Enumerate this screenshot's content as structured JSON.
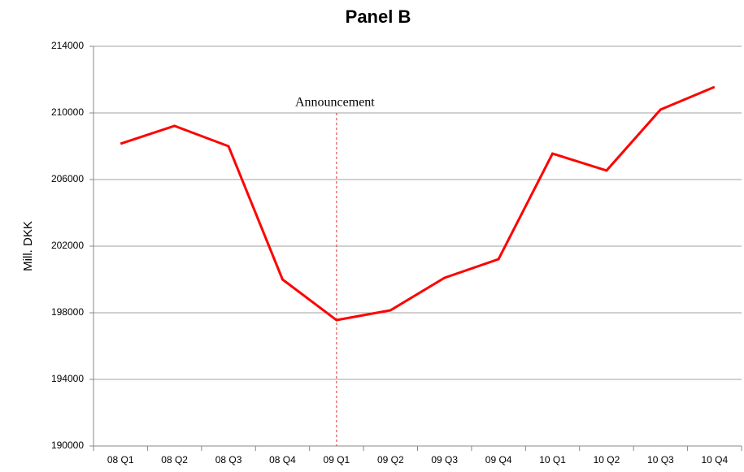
{
  "chart_data": {
    "type": "line",
    "title": "Panel B",
    "y_label": "Mill. DKK",
    "categories": [
      "08 Q1",
      "08 Q2",
      "08 Q3",
      "08 Q4",
      "09 Q1",
      "09 Q2",
      "09 Q3",
      "09 Q4",
      "10 Q1",
      "10 Q2",
      "10 Q3",
      "10 Q4"
    ],
    "series": [
      {
        "name": "Mill. DKK",
        "color": "#ff0000",
        "values": [
          208150,
          209220,
          208000,
          200000,
          197560,
          198150,
          200100,
          201220,
          207560,
          206540,
          210200,
          211560
        ]
      }
    ],
    "ylim": [
      190000,
      214000
    ],
    "yticks": [
      190000,
      194000,
      198000,
      202000,
      206000,
      210000,
      214000
    ],
    "grid": true,
    "annotation": {
      "text": "Announcement",
      "x": "09 Q1",
      "color": "#e03030"
    }
  }
}
